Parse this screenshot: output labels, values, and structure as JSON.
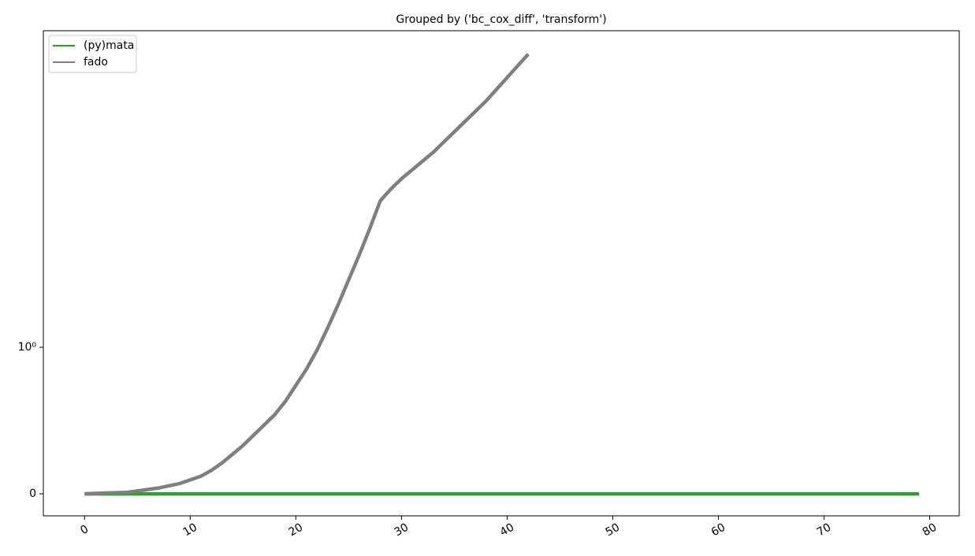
{
  "chart_data": {
    "type": "line",
    "title": "Grouped by ('bc_cox_diff', 'transform')",
    "xlim": [
      -3.9,
      82.8
    ],
    "xticks": [
      0,
      10,
      20,
      30,
      40,
      50,
      60,
      70,
      80
    ],
    "ylim": [
      -0.15,
      3.16
    ],
    "yticks": [
      0,
      {
        "value": 1,
        "label": "10⁰"
      }
    ],
    "legend": "upper left",
    "series": [
      {
        "name": "(py)mata",
        "color": "#2ca02c",
        "x": [
          0,
          1,
          2,
          3,
          4,
          5,
          6,
          7,
          8,
          9,
          10,
          11,
          12,
          13,
          14,
          15,
          16,
          17,
          18,
          19,
          20,
          21,
          22,
          23,
          24,
          25,
          26,
          27,
          28,
          29,
          30,
          31,
          32,
          33,
          34,
          35,
          36,
          37,
          38,
          39,
          40,
          41,
          42,
          43,
          44,
          45,
          46,
          47,
          48,
          49,
          50,
          51,
          52,
          53,
          54,
          55,
          56,
          57,
          58,
          59,
          60,
          61,
          62,
          63,
          64,
          65,
          66,
          67,
          68,
          69,
          70,
          71,
          72,
          73,
          74,
          75,
          76,
          77,
          78,
          79
        ],
        "values": [
          0,
          0,
          0,
          0,
          0,
          0,
          0,
          0,
          0,
          0,
          0,
          0,
          0,
          0,
          0,
          0,
          0,
          0,
          0,
          0,
          0,
          0,
          0,
          0,
          0,
          0,
          0,
          0,
          0,
          0,
          0,
          0,
          0,
          0,
          0,
          0,
          0,
          0,
          0,
          0,
          0,
          0,
          0,
          0,
          0,
          0,
          0,
          0,
          0,
          0,
          0,
          0,
          0,
          0,
          0,
          0,
          0,
          0,
          0,
          0,
          0,
          0,
          0,
          0,
          0,
          0,
          0,
          0,
          0,
          0,
          0,
          0,
          0,
          0,
          0,
          0,
          0,
          0,
          0,
          0
        ]
      },
      {
        "name": "fado",
        "color": "#7f7f7f",
        "x": [
          0,
          1,
          2,
          3,
          4,
          5,
          6,
          7,
          8,
          9,
          10,
          11,
          12,
          13,
          14,
          15,
          16,
          17,
          18,
          19,
          20,
          21,
          22,
          23,
          24,
          25,
          26,
          27,
          28,
          29,
          30,
          31,
          32,
          33,
          34,
          35,
          36,
          37,
          38,
          39,
          40,
          41,
          42
        ],
        "values": [
          0,
          0.003,
          0.006,
          0.008,
          0.01,
          0.02,
          0.03,
          0.04,
          0.055,
          0.07,
          0.095,
          0.12,
          0.16,
          0.21,
          0.27,
          0.33,
          0.4,
          0.47,
          0.54,
          0.63,
          0.74,
          0.85,
          0.98,
          1.13,
          1.29,
          1.46,
          1.63,
          1.81,
          2.0,
          2.08,
          2.15,
          2.21,
          2.27,
          2.33,
          2.4,
          2.47,
          2.54,
          2.61,
          2.68,
          2.76,
          2.84,
          2.92,
          3.0
        ]
      }
    ]
  }
}
